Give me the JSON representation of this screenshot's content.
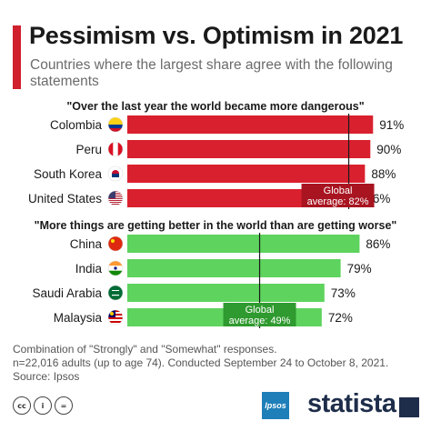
{
  "title": "Pessimism vs. Optimism in 2021",
  "subtitle": "Countries where the largest share agree with the following statements",
  "colors": {
    "accent": "#d0202e",
    "pessimism": "#d9202e",
    "optimism": "#5ed35e",
    "avg_label_red": "#a81420",
    "avg_label_green": "#2f9a2f"
  },
  "chart_data": {
    "type": "bar",
    "orientation": "horizontal",
    "value_unit": "%",
    "xlim": [
      0,
      100
    ],
    "groups": [
      {
        "statement": "\"Over the last year the world became more dangerous\"",
        "color": "#d9202e",
        "categories": [
          "Colombia",
          "Peru",
          "South Korea",
          "United States"
        ],
        "flags": [
          "colombia-flag-icon",
          "peru-flag-icon",
          "south-korea-flag-icon",
          "united-states-flag-icon"
        ],
        "values": [
          91,
          90,
          88,
          86
        ],
        "value_labels": [
          "91%",
          "90%",
          "88%",
          "86%"
        ],
        "reference": {
          "value": 82,
          "label_line1": "Global",
          "label_line2": "average: 82%"
        }
      },
      {
        "statement": "\"More things are getting better in the world than are getting worse\"",
        "color": "#5ed35e",
        "categories": [
          "China",
          "India",
          "Saudi Arabia",
          "Malaysia"
        ],
        "flags": [
          "china-flag-icon",
          "india-flag-icon",
          "saudi-arabia-flag-icon",
          "malaysia-flag-icon"
        ],
        "values": [
          86,
          79,
          73,
          72
        ],
        "value_labels": [
          "86%",
          "79%",
          "73%",
          "72%"
        ],
        "reference": {
          "value": 49,
          "label_line1": "Global",
          "label_line2": "average: 49%"
        }
      }
    ]
  },
  "footer": {
    "note_line1": "Combination of \"Strongly\" and \"Somewhat\" responses.",
    "note_line2": "n=22,016 adults (up to age 74). Conducted September 24 to October 8, 2021.",
    "source": "Source: Ipsos"
  },
  "logos": {
    "ipsos": "Ipsos",
    "statista": "statista",
    "cc": "cc",
    "by": "i",
    "nd": "="
  }
}
